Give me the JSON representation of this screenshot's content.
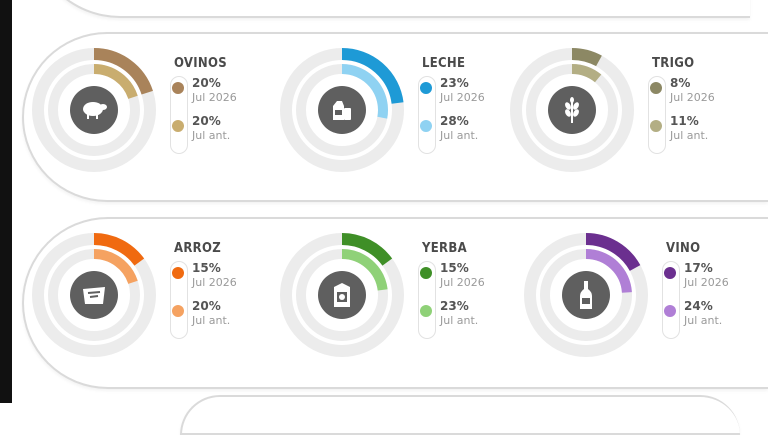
{
  "chart_data": [
    {
      "type": "donut",
      "category": "OVINOS",
      "icon": "sheep-icon",
      "series": [
        {
          "name": "Jul 2026",
          "value": 20,
          "label": "20%",
          "color": "#a9835a"
        },
        {
          "name": "Jul ant.",
          "value": 20,
          "label": "20%",
          "color": "#c9ad6f"
        }
      ]
    },
    {
      "type": "donut",
      "category": "LECHE",
      "icon": "milk-icon",
      "series": [
        {
          "name": "Jul 2026",
          "value": 23,
          "label": "23%",
          "color": "#1e9ad6"
        },
        {
          "name": "Jul ant.",
          "value": 28,
          "label": "28%",
          "color": "#8fd2f2"
        }
      ]
    },
    {
      "type": "donut",
      "category": "TRIGO",
      "icon": "wheat-icon",
      "series": [
        {
          "name": "Jul 2026",
          "value": 8,
          "label": "8%",
          "color": "#8c8864"
        },
        {
          "name": "Jul ant.",
          "value": 11,
          "label": "11%",
          "color": "#b3ae84"
        }
      ]
    },
    {
      "type": "donut",
      "category": "ARROZ",
      "icon": "rice-bag-icon",
      "series": [
        {
          "name": "Jul 2026",
          "value": 15,
          "label": "15%",
          "color": "#f06a10"
        },
        {
          "name": "Jul ant.",
          "value": 20,
          "label": "20%",
          "color": "#f5a261"
        }
      ]
    },
    {
      "type": "donut",
      "category": "YERBA",
      "icon": "yerba-pack-icon",
      "series": [
        {
          "name": "Jul 2026",
          "value": 15,
          "label": "15%",
          "color": "#3f8f27"
        },
        {
          "name": "Jul ant.",
          "value": 23,
          "label": "23%",
          "color": "#8fd178"
        }
      ]
    },
    {
      "type": "donut",
      "category": "VINO",
      "icon": "wine-bottle-icon",
      "series": [
        {
          "name": "Jul 2026",
          "value": 17,
          "label": "17%",
          "color": "#6b2f8f"
        },
        {
          "name": "Jul ant.",
          "value": 24,
          "label": "24%",
          "color": "#b07fd6"
        }
      ]
    }
  ]
}
